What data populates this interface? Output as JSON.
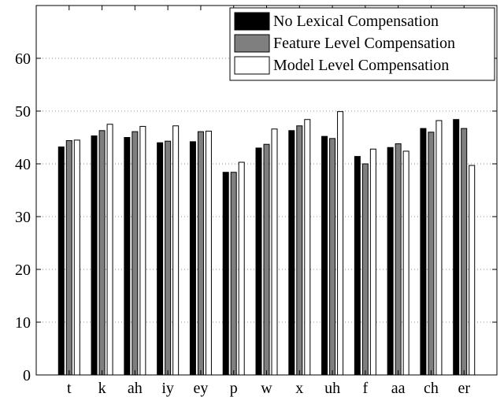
{
  "chart_data": {
    "type": "bar",
    "categories": [
      "t",
      "k",
      "ah",
      "iy",
      "ey",
      "p",
      "w",
      "x",
      "uh",
      "f",
      "aa",
      "ch",
      "er"
    ],
    "series": [
      {
        "name": "No Lexical Compensation",
        "color": "#000000",
        "values": [
          43.2,
          45.3,
          45.0,
          44.0,
          44.2,
          38.4,
          43.0,
          46.3,
          45.2,
          41.4,
          43.1,
          46.7,
          48.4
        ]
      },
      {
        "name": "Feature Level Compensation",
        "color": "#7f7f7f",
        "values": [
          44.4,
          46.3,
          46.1,
          44.3,
          46.1,
          38.4,
          43.7,
          47.2,
          44.8,
          40.0,
          43.8,
          46.0,
          46.7
        ]
      },
      {
        "name": "Model Level Compensation",
        "color": "#ffffff",
        "values": [
          44.5,
          47.5,
          47.1,
          47.2,
          46.2,
          40.3,
          46.6,
          48.4,
          49.9,
          42.8,
          42.4,
          48.2,
          39.7
        ]
      }
    ],
    "y_ticks": [
      0,
      10,
      20,
      30,
      40,
      50,
      60
    ],
    "ylim": [
      0,
      70
    ],
    "grid": true,
    "legend_position": "top-right",
    "title": "",
    "xlabel": "",
    "ylabel": ""
  }
}
